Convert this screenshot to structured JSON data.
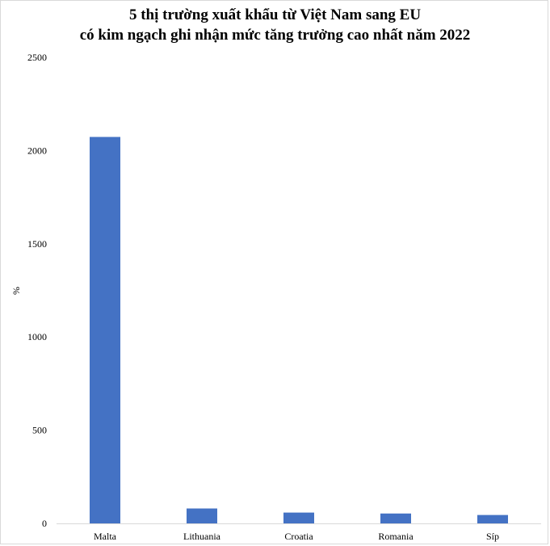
{
  "chart_data": {
    "type": "bar",
    "title_line1": "5 thị trường xuất khẩu từ Việt Nam sang EU",
    "title_line2": "có kim ngạch ghi nhận mức tăng trưởng cao nhất năm 2022",
    "xlabel": "",
    "ylabel": "%",
    "categories": [
      "Malta",
      "Lithuania",
      "Croatia",
      "Romania",
      "Síp"
    ],
    "values": [
      2073,
      80,
      58,
      53,
      45
    ],
    "ylim": [
      0,
      2500
    ],
    "yticks": [
      "0",
      "500",
      "1000",
      "1500",
      "2000",
      "2500"
    ],
    "grid": false,
    "legend": "none",
    "bar_color": "#4472c4",
    "axis_color": "#d9d9d9"
  }
}
